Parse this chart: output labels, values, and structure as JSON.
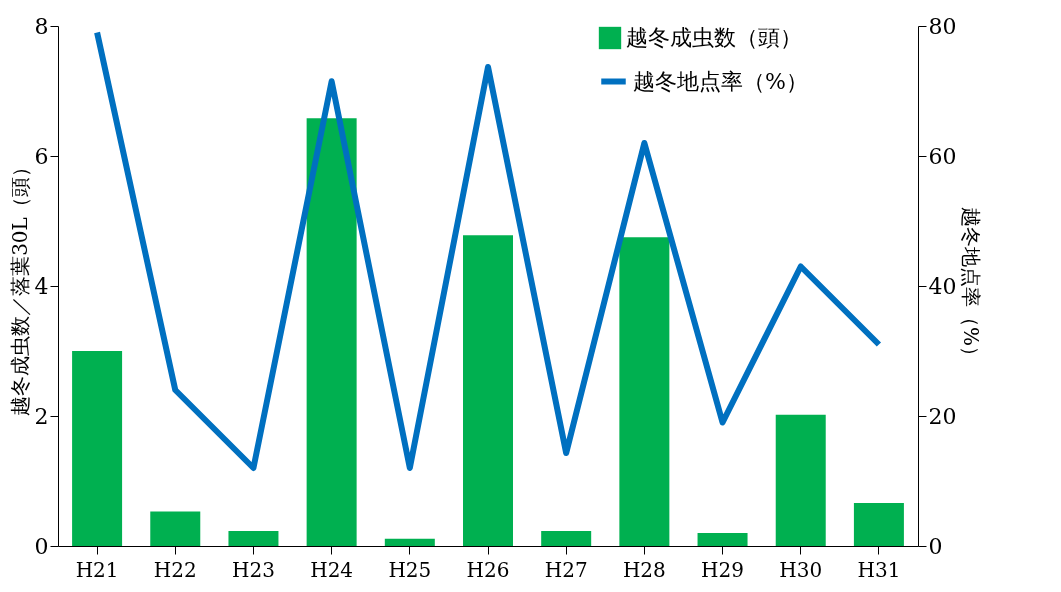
{
  "chart_data": {
    "type": "bar",
    "categories": [
      "H21",
      "H22",
      "H23",
      "H24",
      "H25",
      "H26",
      "H27",
      "H28",
      "H29",
      "H30",
      "H31"
    ],
    "ylabel": "越冬成虫数／落葉30L（頭）",
    "y2label": "越冬地点率（%）",
    "ylim": [
      0,
      8
    ],
    "yticks": [
      0,
      2,
      4,
      6,
      8
    ],
    "y2lim": [
      0,
      80
    ],
    "y2ticks": [
      0,
      20,
      40,
      60,
      80
    ],
    "series": [
      {
        "name": "越冬成虫数（頭）",
        "color": "#00b050",
        "values": [
          3.0,
          0.53,
          0.23,
          6.58,
          0.11,
          4.78,
          0.23,
          4.75,
          0.2,
          2.02,
          0.66
        ]
      },
      {
        "name": "越冬地点率（%）",
        "type": "line",
        "axis": "y2",
        "color": "#0070c0",
        "values": [
          79,
          24,
          12,
          71.5,
          12,
          73.7,
          14.3,
          62,
          19,
          43,
          31
        ]
      }
    ],
    "legend": "top right",
    "grid": false
  }
}
